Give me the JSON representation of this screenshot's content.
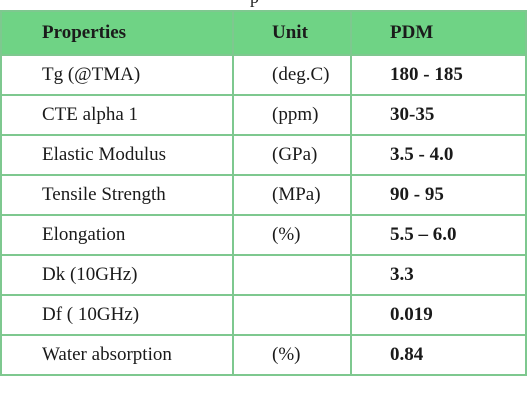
{
  "caption_fragment": "p",
  "table": {
    "headers": [
      "Properties",
      "Unit",
      "PDM"
    ],
    "rows": [
      {
        "property": "Tg (@TMA)",
        "unit": "(deg.C)",
        "value": "180 - 185"
      },
      {
        "property": "CTE alpha 1",
        "unit": "(ppm)",
        "value": "30-35"
      },
      {
        "property": "Elastic Modulus",
        "unit": "(GPa)",
        "value": "3.5 - 4.0"
      },
      {
        "property": "Tensile Strength",
        "unit": "(MPa)",
        "value": "90 - 95"
      },
      {
        "property": "Elongation",
        "unit": "(%)",
        "value": "5.5 – 6.0"
      },
      {
        "property": "Dk (10GHz)",
        "unit": "",
        "value": "3.3"
      },
      {
        "property": "Df ( 10GHz)",
        "unit": "",
        "value": "0.019"
      },
      {
        "property": "Water absorption",
        "unit": "(%)",
        "value": "0.84"
      }
    ]
  },
  "colors": {
    "header_bg": "#6fd385",
    "border": "#7ec88f"
  }
}
